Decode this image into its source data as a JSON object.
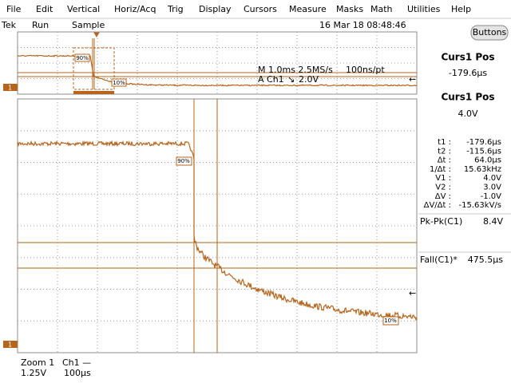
{
  "menu": [
    "File",
    "Edit",
    "Vertical",
    "Horiz/Acq",
    "Trig",
    "Display",
    "Cursors",
    "Measure",
    "Masks",
    "Math",
    "Utilities",
    "Help"
  ],
  "status": {
    "brand": "Tek",
    "state": "Run",
    "mode": "Sample",
    "datetime": "16 Mar 18 08:48:46",
    "button": "Buttons"
  },
  "overview": {
    "timebase": "M 1.0ms 2.5MS/s",
    "resolution": "100ns/pt",
    "trigger_source": "A  Ch1",
    "trigger_slope": "↘",
    "trigger_level": "2.0V",
    "marker_high": "90%",
    "marker_low": "10%",
    "channel": "1"
  },
  "waveform": {
    "marker_high": "90%",
    "marker_low": "10%",
    "channel": "1"
  },
  "footer": {
    "zoom": "Zoom 1",
    "channel": "Ch1 —",
    "scale": "1.25V",
    "timebase": "100µs"
  },
  "panel": {
    "readouts": [
      {
        "label": "Curs1 Pos",
        "value": "-179.6µs"
      },
      {
        "label": "Curs1 Pos",
        "value": "4.0V"
      }
    ],
    "cursor_table": [
      [
        "t1 :",
        "-179.6µs"
      ],
      [
        "t2 :",
        "-115.6µs"
      ],
      [
        "Δt :",
        "64.0µs"
      ],
      [
        "1/Δt :",
        "15.63kHz"
      ],
      [
        "V1 :",
        "4.0V"
      ],
      [
        "V2 :",
        "3.0V"
      ],
      [
        "ΔV :",
        "-1.0V"
      ],
      [
        "ΔV/Δt :",
        "-15.63kV/s"
      ]
    ],
    "measurements": [
      {
        "label": "Pk-Pk(C1)",
        "value": "8.4V"
      },
      {
        "label": "Fall(C1)*",
        "value": "475.5µs"
      }
    ]
  }
}
